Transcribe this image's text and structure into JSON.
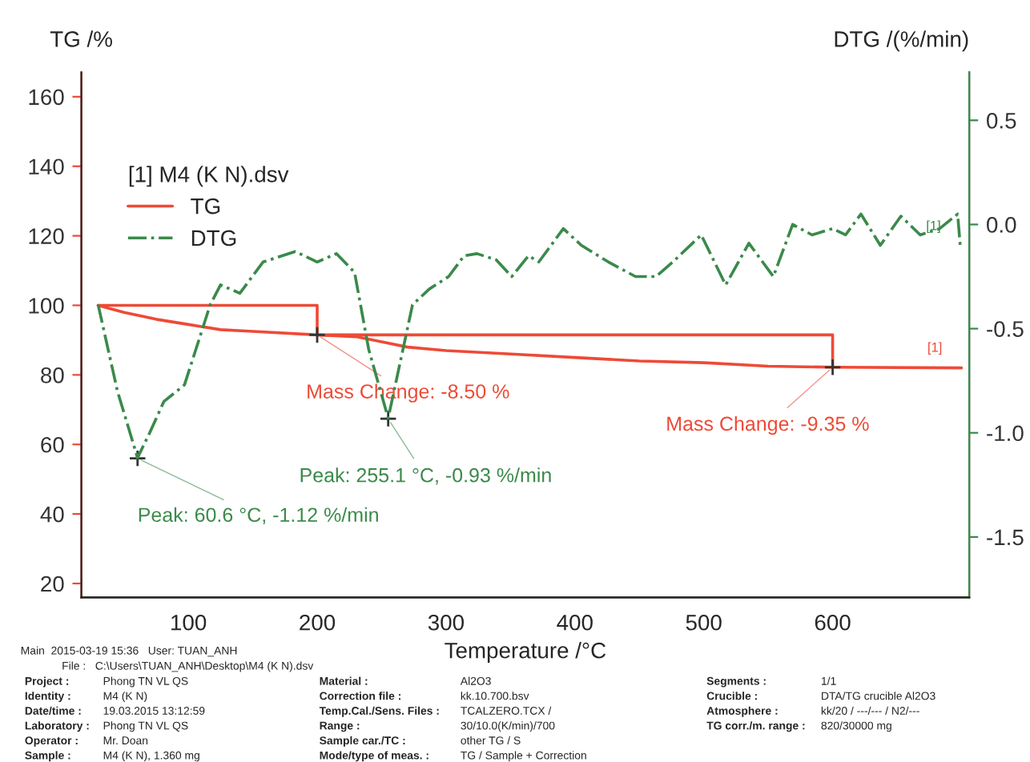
{
  "chart_data": {
    "type": "line",
    "xlabel": "Temperature /°C",
    "ylabel": "TG /%",
    "y2label": "DTG /(%/min)",
    "legend_title": "[1] M4 (K N).dsv",
    "xlim": [
      17,
      706
    ],
    "xticks": [
      100,
      200,
      300,
      400,
      500,
      600
    ],
    "ylim": [
      16,
      167
    ],
    "yticks": [
      20,
      40,
      60,
      80,
      100,
      120,
      140,
      160
    ],
    "y2lim": [
      -1.79,
      0.73
    ],
    "y2ticks": [
      -1.5,
      {
        "value": -1.0,
        "label": "-1.0"
      },
      -0.5,
      {
        "value": 0.0,
        "label": "0.0"
      },
      0.5
    ],
    "grid": false,
    "legend": "top left",
    "series": [
      {
        "name": "TG",
        "color": "#ee4a36",
        "line_style": "solid",
        "x": [
          30,
          50,
          75,
          100,
          125,
          150,
          200,
          230,
          250,
          270,
          300,
          350,
          400,
          450,
          500,
          550,
          600,
          700
        ],
        "values": [
          100,
          98,
          96,
          94.5,
          93,
          92.5,
          91.5,
          91,
          89.5,
          88,
          87,
          86,
          85,
          84,
          83.5,
          82.5,
          82.2,
          82
        ]
      },
      {
        "name": "DTG",
        "color": "#3a8a4a",
        "axis": "y2",
        "line_style": "dashdot",
        "x": [
          30,
          45,
          60.6,
          70,
          81,
          97,
          117,
          125,
          140,
          158,
          183,
          200,
          215,
          229,
          240,
          255.1,
          274,
          287,
          302,
          314,
          324,
          339,
          351,
          364,
          372,
          391,
          405,
          426,
          447,
          463,
          476,
          498,
          517,
          535,
          554,
          569,
          584,
          600,
          610,
          622,
          637,
          653,
          668,
          683,
          697,
          699
        ],
        "values": [
          -0.385,
          -0.8,
          -1.12,
          -1.0,
          -0.85,
          -0.77,
          -0.385,
          -0.29,
          -0.33,
          -0.18,
          -0.13,
          -0.18,
          -0.14,
          -0.23,
          -0.6,
          -0.93,
          -0.385,
          -0.31,
          -0.25,
          -0.15,
          -0.14,
          -0.17,
          -0.25,
          -0.15,
          -0.18,
          -0.02,
          -0.1,
          -0.18,
          -0.25,
          -0.25,
          -0.18,
          -0.05,
          -0.29,
          -0.09,
          -0.25,
          0.0,
          -0.05,
          -0.02,
          -0.05,
          0.05,
          -0.1,
          0.04,
          -0.05,
          -0.02,
          0.05,
          -0.1
        ]
      },
      {
        "color": "#ee4a36",
        "line_style": "solid",
        "x": [
          30,
          200,
          200,
          200,
          600,
          600
        ],
        "values": [
          100,
          100,
          91.5,
          91.5,
          91.5,
          82.2
        ]
      }
    ],
    "annotations": [
      {
        "text": "Mass Change: -8.50 %",
        "x": 200,
        "y": 91.5
      },
      {
        "text": "Mass Change: -9.35 %",
        "x": 600,
        "y": 82.2
      },
      {
        "text": "Peak: 60.6 °C, -1.12 %/min",
        "x": 60.6,
        "y": 56
      },
      {
        "text": "Peak: 255.1 °C, -0.93 %/min",
        "x": 255.1,
        "y": 67.4
      },
      {
        "text": "[1]",
        "x": 700,
        "y": 82
      },
      {
        "text": "[1]",
        "x": 699,
        "y": 117
      },
      "Main  2015-03-19 15:36   User: TUAN_ANH",
      "File :   C:\\Users\\TUAN_ANH\\Desktop\\M4 (K N).dsv",
      "Project :",
      "Phong TN VL QS",
      "Identity :",
      "M4 (K N)",
      "Date/time :",
      "19.03.2015 13:12:59",
      "Laboratory :",
      "Phong TN VL QS",
      "Operator :",
      "Mr. Doan",
      "Sample :",
      "M4 (K N), 1.360 mg",
      "Material :",
      "Al2O3",
      "Correction file :",
      "kk.10.700.bsv",
      "Temp.Cal./Sens. Files :",
      "TCALZERO.TCX /",
      "Range :",
      "30/10.0(K/min)/700",
      "Sample car./TC :",
      "other TG / S",
      "Mode/type of meas. :",
      "TG / Sample + Correction",
      "Segments :",
      "1/1",
      "Crucible :",
      "DTA/TG crucible Al2O3",
      "Atmosphere :",
      "kk/20 / ---/--- / N2/---",
      "TG corr./m. range :",
      "820/30000 mg"
    ]
  }
}
